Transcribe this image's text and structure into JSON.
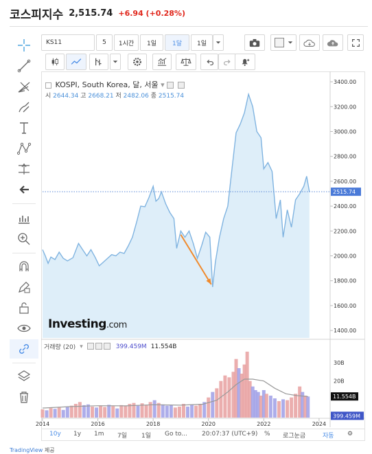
{
  "header": {
    "title": "코스피지수",
    "price": "2,515.74",
    "change": "+6.94 (+0.28%)"
  },
  "toolbar": {
    "symbol": "KS11",
    "interval": "5",
    "range_buttons": [
      "1시간",
      "1일",
      "1달",
      "1일"
    ],
    "selected_range": "1달"
  },
  "legend": {
    "title": "KOSPI, South Korea, 달, 서울",
    "ohlc": [
      {
        "label": "시",
        "value": "2644.34"
      },
      {
        "label": "고",
        "value": "2668.21"
      },
      {
        "label": "저",
        "value": "2482.06"
      },
      {
        "label": "종",
        "value": "2515.74"
      }
    ]
  },
  "volume_legend": {
    "label": "거래량 (20)",
    "value1": "399.459M",
    "value2": "11.554B"
  },
  "logo": {
    "main": "Investing",
    "suffix": ".com"
  },
  "bottom": {
    "periods": [
      "10y",
      "1y",
      "1m",
      "7일",
      "1일"
    ],
    "goto": "Go to...",
    "time": "20:07:37 (UTC+9)",
    "percent": "%",
    "log": "로그눈금",
    "auto": "자동"
  },
  "footer": {
    "brand": "TradingView",
    "suffix": " 제공"
  },
  "colors": {
    "line": "#7fb3e0",
    "area": "#deeef9",
    "up": "#e8a0a0",
    "down": "#9f9fe6",
    "arrow": "#f08a2c",
    "last": "#4a7ad8"
  },
  "chart_data": {
    "type": "area",
    "x_ticks": [
      "2014",
      "2016",
      "2018",
      "2020",
      "2022",
      "2024"
    ],
    "y_ticks": [
      "3400.00",
      "3200.00",
      "3000.00",
      "2800.00",
      "2600.00",
      "2400.00",
      "2200.00",
      "2000.00",
      "1800.00",
      "1600.00",
      "1400.00"
    ],
    "ylim": [
      1340,
      3450
    ],
    "last_value": "2515.74",
    "volume_ticks": [
      "30B",
      "20B"
    ],
    "volume_last": "11.554B",
    "volume_ma_label": "399.459M",
    "series": [
      {
        "x": 2014.0,
        "y": 2050
      },
      {
        "x": 2014.1,
        "y": 2000
      },
      {
        "x": 2014.2,
        "y": 1940
      },
      {
        "x": 2014.3,
        "y": 1990
      },
      {
        "x": 2014.45,
        "y": 1970
      },
      {
        "x": 2014.6,
        "y": 2030
      },
      {
        "x": 2014.75,
        "y": 1980
      },
      {
        "x": 2014.9,
        "y": 1960
      },
      {
        "x": 2015.1,
        "y": 1985
      },
      {
        "x": 2015.3,
        "y": 2100
      },
      {
        "x": 2015.45,
        "y": 2050
      },
      {
        "x": 2015.6,
        "y": 2000
      },
      {
        "x": 2015.75,
        "y": 2050
      },
      {
        "x": 2015.9,
        "y": 1990
      },
      {
        "x": 2016.05,
        "y": 1920
      },
      {
        "x": 2016.2,
        "y": 1950
      },
      {
        "x": 2016.35,
        "y": 1980
      },
      {
        "x": 2016.5,
        "y": 2010
      },
      {
        "x": 2016.65,
        "y": 2000
      },
      {
        "x": 2016.8,
        "y": 2030
      },
      {
        "x": 2016.95,
        "y": 2020
      },
      {
        "x": 2017.1,
        "y": 2080
      },
      {
        "x": 2017.25,
        "y": 2150
      },
      {
        "x": 2017.4,
        "y": 2270
      },
      {
        "x": 2017.55,
        "y": 2400
      },
      {
        "x": 2017.7,
        "y": 2395
      },
      {
        "x": 2017.85,
        "y": 2470
      },
      {
        "x": 2018.0,
        "y": 2560
      },
      {
        "x": 2018.1,
        "y": 2440
      },
      {
        "x": 2018.2,
        "y": 2460
      },
      {
        "x": 2018.3,
        "y": 2515
      },
      {
        "x": 2018.45,
        "y": 2420
      },
      {
        "x": 2018.6,
        "y": 2350
      },
      {
        "x": 2018.75,
        "y": 2300
      },
      {
        "x": 2018.85,
        "y": 2060
      },
      {
        "x": 2019.0,
        "y": 2200
      },
      {
        "x": 2019.15,
        "y": 2150
      },
      {
        "x": 2019.3,
        "y": 2200
      },
      {
        "x": 2019.45,
        "y": 2100
      },
      {
        "x": 2019.6,
        "y": 1980
      },
      {
        "x": 2019.75,
        "y": 2080
      },
      {
        "x": 2019.9,
        "y": 2190
      },
      {
        "x": 2020.05,
        "y": 2150
      },
      {
        "x": 2020.15,
        "y": 1750
      },
      {
        "x": 2020.25,
        "y": 1950
      },
      {
        "x": 2020.4,
        "y": 2150
      },
      {
        "x": 2020.55,
        "y": 2300
      },
      {
        "x": 2020.7,
        "y": 2400
      },
      {
        "x": 2020.85,
        "y": 2700
      },
      {
        "x": 2021.0,
        "y": 2990
      },
      {
        "x": 2021.15,
        "y": 3060
      },
      {
        "x": 2021.3,
        "y": 3150
      },
      {
        "x": 2021.45,
        "y": 3300
      },
      {
        "x": 2021.6,
        "y": 3200
      },
      {
        "x": 2021.75,
        "y": 3000
      },
      {
        "x": 2021.9,
        "y": 2950
      },
      {
        "x": 2022.0,
        "y": 2700
      },
      {
        "x": 2022.15,
        "y": 2750
      },
      {
        "x": 2022.3,
        "y": 2680
      },
      {
        "x": 2022.45,
        "y": 2300
      },
      {
        "x": 2022.6,
        "y": 2450
      },
      {
        "x": 2022.7,
        "y": 2150
      },
      {
        "x": 2022.85,
        "y": 2370
      },
      {
        "x": 2023.0,
        "y": 2230
      },
      {
        "x": 2023.15,
        "y": 2450
      },
      {
        "x": 2023.3,
        "y": 2500
      },
      {
        "x": 2023.45,
        "y": 2560
      },
      {
        "x": 2023.55,
        "y": 2640
      },
      {
        "x": 2023.65,
        "y": 2515
      }
    ],
    "arrow": {
      "from": {
        "x": 2019.0,
        "y": 2170
      },
      "to": {
        "x": 2020.1,
        "y": 1770
      }
    },
    "volume_bars": [
      {
        "x": 2014.0,
        "v": 4.5,
        "up": 1
      },
      {
        "x": 2014.15,
        "v": 4.0,
        "up": 0
      },
      {
        "x": 2014.3,
        "v": 5.2,
        "up": 1
      },
      {
        "x": 2014.45,
        "v": 4.8,
        "up": 0
      },
      {
        "x": 2014.6,
        "v": 5.5,
        "up": 1
      },
      {
        "x": 2014.75,
        "v": 4.2,
        "up": 0
      },
      {
        "x": 2014.9,
        "v": 6.0,
        "up": 0
      },
      {
        "x": 2015.05,
        "v": 6.5,
        "up": 1
      },
      {
        "x": 2015.2,
        "v": 7.5,
        "up": 1
      },
      {
        "x": 2015.35,
        "v": 8.5,
        "up": 1
      },
      {
        "x": 2015.5,
        "v": 6.8,
        "up": 0
      },
      {
        "x": 2015.65,
        "v": 7.2,
        "up": 0
      },
      {
        "x": 2015.8,
        "v": 6.0,
        "up": 1
      },
      {
        "x": 2015.95,
        "v": 5.5,
        "up": 0
      },
      {
        "x": 2016.1,
        "v": 6.5,
        "up": 1
      },
      {
        "x": 2016.25,
        "v": 5.8,
        "up": 1
      },
      {
        "x": 2016.4,
        "v": 7.0,
        "up": 0
      },
      {
        "x": 2016.55,
        "v": 6.2,
        "up": 1
      },
      {
        "x": 2016.7,
        "v": 5.0,
        "up": 0
      },
      {
        "x": 2016.85,
        "v": 6.8,
        "up": 1
      },
      {
        "x": 2017.0,
        "v": 6.5,
        "up": 1
      },
      {
        "x": 2017.15,
        "v": 7.5,
        "up": 1
      },
      {
        "x": 2017.3,
        "v": 8.0,
        "up": 1
      },
      {
        "x": 2017.45,
        "v": 6.5,
        "up": 0
      },
      {
        "x": 2017.6,
        "v": 7.8,
        "up": 1
      },
      {
        "x": 2017.75,
        "v": 6.8,
        "up": 1
      },
      {
        "x": 2017.9,
        "v": 8.5,
        "up": 1
      },
      {
        "x": 2018.05,
        "v": 9.5,
        "up": 0
      },
      {
        "x": 2018.2,
        "v": 8.0,
        "up": 1
      },
      {
        "x": 2018.35,
        "v": 7.2,
        "up": 0
      },
      {
        "x": 2018.5,
        "v": 6.5,
        "up": 0
      },
      {
        "x": 2018.65,
        "v": 7.0,
        "up": 0
      },
      {
        "x": 2018.8,
        "v": 5.5,
        "up": 1
      },
      {
        "x": 2018.95,
        "v": 6.0,
        "up": 1
      },
      {
        "x": 2019.1,
        "v": 7.5,
        "up": 1
      },
      {
        "x": 2019.25,
        "v": 6.0,
        "up": 0
      },
      {
        "x": 2019.4,
        "v": 7.0,
        "up": 0
      },
      {
        "x": 2019.55,
        "v": 6.5,
        "up": 1
      },
      {
        "x": 2019.7,
        "v": 7.5,
        "up": 1
      },
      {
        "x": 2019.85,
        "v": 8.5,
        "up": 0
      },
      {
        "x": 2020.0,
        "v": 11.0,
        "up": 1
      },
      {
        "x": 2020.15,
        "v": 14.0,
        "up": 0
      },
      {
        "x": 2020.3,
        "v": 16.0,
        "up": 1
      },
      {
        "x": 2020.45,
        "v": 20.0,
        "up": 1
      },
      {
        "x": 2020.6,
        "v": 23.0,
        "up": 1
      },
      {
        "x": 2020.75,
        "v": 22.0,
        "up": 1
      },
      {
        "x": 2020.9,
        "v": 25.0,
        "up": 1
      },
      {
        "x": 2021.0,
        "v": 32.0,
        "up": 1
      },
      {
        "x": 2021.1,
        "v": 27.0,
        "up": 0
      },
      {
        "x": 2021.2,
        "v": 24.0,
        "up": 1
      },
      {
        "x": 2021.3,
        "v": 29.0,
        "up": 1
      },
      {
        "x": 2021.4,
        "v": 36.0,
        "up": 1
      },
      {
        "x": 2021.5,
        "v": 20.0,
        "up": 1
      },
      {
        "x": 2021.6,
        "v": 17.0,
        "up": 0
      },
      {
        "x": 2021.7,
        "v": 15.0,
        "up": 0
      },
      {
        "x": 2021.8,
        "v": 14.0,
        "up": 0
      },
      {
        "x": 2021.9,
        "v": 12.0,
        "up": 1
      },
      {
        "x": 2022.0,
        "v": 15.0,
        "up": 0
      },
      {
        "x": 2022.1,
        "v": 13.0,
        "up": 1
      },
      {
        "x": 2022.25,
        "v": 12.0,
        "up": 0
      },
      {
        "x": 2022.4,
        "v": 10.5,
        "up": 0
      },
      {
        "x": 2022.55,
        "v": 9.0,
        "up": 1
      },
      {
        "x": 2022.7,
        "v": 10.0,
        "up": 0
      },
      {
        "x": 2022.85,
        "v": 9.5,
        "up": 1
      },
      {
        "x": 2023.0,
        "v": 11.0,
        "up": 1
      },
      {
        "x": 2023.15,
        "v": 13.0,
        "up": 1
      },
      {
        "x": 2023.3,
        "v": 17.0,
        "up": 1
      },
      {
        "x": 2023.4,
        "v": 14.0,
        "up": 0
      },
      {
        "x": 2023.5,
        "v": 12.0,
        "up": 1
      },
      {
        "x": 2023.6,
        "v": 11.5,
        "up": 0
      }
    ],
    "volume_ma": [
      {
        "x": 2014.0,
        "v": 5.2
      },
      {
        "x": 2015.0,
        "v": 6.0
      },
      {
        "x": 2016.0,
        "v": 6.5
      },
      {
        "x": 2017.0,
        "v": 6.4
      },
      {
        "x": 2018.0,
        "v": 7.0
      },
      {
        "x": 2019.0,
        "v": 6.8
      },
      {
        "x": 2019.8,
        "v": 7.3
      },
      {
        "x": 2020.3,
        "v": 9.5
      },
      {
        "x": 2020.7,
        "v": 14.0
      },
      {
        "x": 2021.0,
        "v": 18.0
      },
      {
        "x": 2021.3,
        "v": 21.0
      },
      {
        "x": 2021.6,
        "v": 21.0
      },
      {
        "x": 2022.0,
        "v": 20.0
      },
      {
        "x": 2022.4,
        "v": 16.0
      },
      {
        "x": 2022.8,
        "v": 13.0
      },
      {
        "x": 2023.2,
        "v": 12.0
      },
      {
        "x": 2023.6,
        "v": 11.5
      }
    ]
  }
}
